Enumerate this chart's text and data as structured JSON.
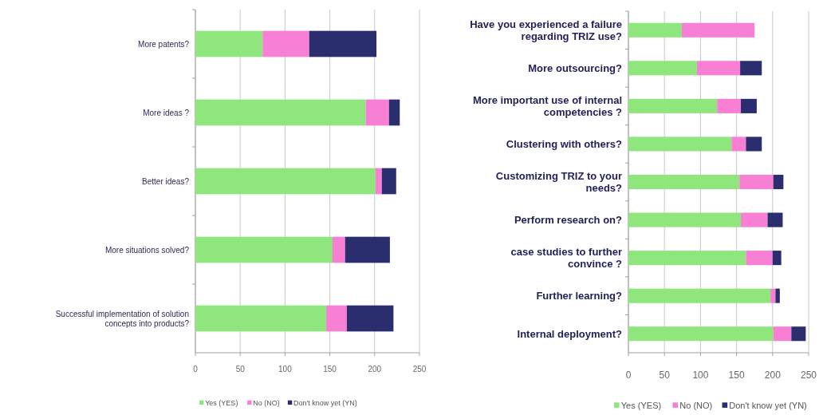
{
  "chart_data": [
    {
      "type": "bar",
      "orientation": "horizontal",
      "stacked": true,
      "categories": [
        "More patents?",
        "More ideas ?",
        "Better ideas?",
        "More situations solved?",
        "Successful implementation of solution concepts into products?"
      ],
      "series": [
        {
          "name": "Yes (YES)",
          "color": "#8ee67c",
          "values": [
            75,
            190,
            201,
            153,
            146
          ]
        },
        {
          "name": "No (NO)",
          "color": "#f77fd4",
          "values": [
            52,
            26,
            7,
            14,
            23
          ]
        },
        {
          "name": "Don't know yet (YN)",
          "color": "#2b2e6e",
          "values": [
            75,
            12,
            16,
            50,
            52
          ]
        }
      ],
      "xlim": [
        0,
        250
      ],
      "xticks": [
        0,
        50,
        100,
        150,
        200,
        250
      ],
      "grid": "x",
      "legend": "bottom"
    },
    {
      "type": "bar",
      "orientation": "horizontal",
      "stacked": true,
      "categories": [
        "Have you experienced a failure regarding TRIZ use?",
        "More outsourcing?",
        "More important use of internal competencies ?",
        "Clustering with others?",
        "Customizing TRIZ to your needs?",
        "Perform research on?",
        "case studies to further convince ?",
        "Further learning?",
        "Internal deployment?"
      ],
      "series": [
        {
          "name": "Yes (YES)",
          "color": "#8ee67c",
          "values": [
            74,
            95,
            123,
            143,
            154,
            156,
            163,
            197,
            201
          ]
        },
        {
          "name": "No (NO)",
          "color": "#f77fd4",
          "values": [
            101,
            60,
            33,
            20,
            47,
            37,
            37,
            7,
            25
          ]
        },
        {
          "name": "Don't know yet (YN)",
          "color": "#2b2e6e",
          "values": [
            0,
            30,
            22,
            22,
            14,
            21,
            12,
            6,
            20
          ]
        }
      ],
      "xlim": [
        0,
        250
      ],
      "xticks": [
        0,
        50,
        100,
        150,
        200,
        250
      ],
      "grid": "x",
      "legend": "bottom"
    }
  ]
}
